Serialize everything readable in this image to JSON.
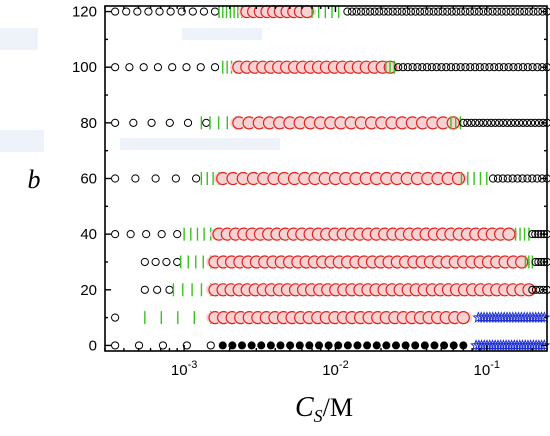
{
  "chart_data": {
    "type": "scatter",
    "title": "",
    "xlabel": "C_S/M",
    "ylabel": "b",
    "x_scale": "log",
    "xlim": [
      0.0003,
      0.25
    ],
    "ylim": [
      -2,
      122
    ],
    "grid": false,
    "legend": "none",
    "colors": {
      "open_circle": "#000000",
      "large_circle": "#e0201c",
      "bar": "#36c21f",
      "filled_circle": "#000000",
      "star": "#1d2fd6",
      "halo": "#f6d2d2"
    },
    "x_ticks": [
      {
        "value": 0.001,
        "base": "10",
        "exp": "-3"
      },
      {
        "value": 0.01,
        "base": "10",
        "exp": "-2"
      },
      {
        "value": 0.1,
        "base": "10",
        "exp": "-1"
      }
    ],
    "y_ticks": [
      {
        "value": 0,
        "label": "0"
      },
      {
        "value": 20,
        "label": "20"
      },
      {
        "value": 40,
        "label": "40"
      },
      {
        "value": 60,
        "label": "60"
      },
      {
        "value": 80,
        "label": "80"
      },
      {
        "value": 100,
        "label": "100"
      },
      {
        "value": 120,
        "label": "120"
      }
    ],
    "rows": [
      {
        "b": 120,
        "segments": [
          {
            "marker": "open_circle",
            "from": 0.00035,
            "to": 0.0016,
            "n": 10
          },
          {
            "marker": "bar",
            "from": 0.0017,
            "to": 0.0024,
            "n": 7
          },
          {
            "marker": "large_circle",
            "from": 0.0026,
            "to": 0.0065,
            "n": 10
          },
          {
            "marker": "bar",
            "from": 0.007,
            "to": 0.0105,
            "n": 5
          },
          {
            "marker": "open_circle",
            "from": 0.012,
            "to": 0.25,
            "n": 45
          }
        ]
      },
      {
        "b": 100,
        "segments": [
          {
            "marker": "open_circle",
            "from": 0.00035,
            "to": 0.0016,
            "n": 8
          },
          {
            "marker": "bar",
            "from": 0.0018,
            "to": 0.0022,
            "n": 4
          },
          {
            "marker": "large_circle",
            "from": 0.0023,
            "to": 0.023,
            "n": 20
          },
          {
            "marker": "bar",
            "from": 0.0215,
            "to": 0.0245,
            "n": 3
          },
          {
            "marker": "open_circle",
            "from": 0.026,
            "to": 0.25,
            "n": 32
          }
        ]
      },
      {
        "b": 80,
        "segments": [
          {
            "marker": "open_circle",
            "from": 0.00035,
            "to": 0.0014,
            "n": 6
          },
          {
            "marker": "bar",
            "from": 0.0013,
            "to": 0.0022,
            "n": 5
          },
          {
            "marker": "large_circle",
            "from": 0.0023,
            "to": 0.06,
            "n": 22
          },
          {
            "marker": "bar",
            "from": 0.058,
            "to": 0.067,
            "n": 3
          },
          {
            "marker": "open_circle",
            "from": 0.07,
            "to": 0.25,
            "n": 22
          }
        ]
      },
      {
        "b": 60,
        "segments": [
          {
            "marker": "open_circle",
            "from": 0.00035,
            "to": 0.0012,
            "n": 5
          },
          {
            "marker": "bar",
            "from": 0.0013,
            "to": 0.0017,
            "n": 4
          },
          {
            "marker": "large_circle",
            "from": 0.0018,
            "to": 0.065,
            "n": 24
          },
          {
            "marker": "bar",
            "from": 0.068,
            "to": 0.1,
            "n": 5
          },
          {
            "marker": "open_circle",
            "from": 0.11,
            "to": 0.25,
            "n": 12
          }
        ]
      },
      {
        "b": 40,
        "segments": [
          {
            "marker": "open_circle",
            "from": 0.00035,
            "to": 0.0009,
            "n": 5
          },
          {
            "marker": "bar",
            "from": 0.001,
            "to": 0.0015,
            "n": 5
          },
          {
            "marker": "large_circle",
            "from": 0.0017,
            "to": 0.14,
            "n": 36
          },
          {
            "marker": "bar",
            "from": 0.155,
            "to": 0.19,
            "n": 4
          },
          {
            "marker": "open_circle",
            "from": 0.2,
            "to": 0.25,
            "n": 6
          }
        ]
      },
      {
        "b": 30,
        "segments": [
          {
            "marker": "open_circle",
            "from": 0.00055,
            "to": 0.0009,
            "n": 4
          },
          {
            "marker": "bar",
            "from": 0.00095,
            "to": 0.0015,
            "n": 5
          },
          {
            "marker": "large_circle",
            "from": 0.0016,
            "to": 0.17,
            "n": 38
          },
          {
            "marker": "bar",
            "from": 0.18,
            "to": 0.2,
            "n": 3
          },
          {
            "marker": "open_circle",
            "from": 0.21,
            "to": 0.25,
            "n": 5
          }
        ]
      },
      {
        "b": 20,
        "segments": [
          {
            "marker": "open_circle",
            "from": 0.00055,
            "to": 0.0008,
            "n": 3
          },
          {
            "marker": "bar",
            "from": 0.00085,
            "to": 0.0015,
            "n": 5
          },
          {
            "marker": "large_circle",
            "from": 0.0016,
            "to": 0.19,
            "n": 40
          },
          {
            "marker": "open_circle",
            "from": 0.2,
            "to": 0.25,
            "n": 5
          }
        ]
      },
      {
        "b": 10,
        "segments": [
          {
            "marker": "open_circle",
            "from": 0.00035,
            "to": 0.00035,
            "n": 1
          },
          {
            "marker": "bar",
            "from": 0.00055,
            "to": 0.0015,
            "n": 5
          },
          {
            "marker": "large_circle",
            "from": 0.0016,
            "to": 0.07,
            "n": 30
          },
          {
            "marker": "star",
            "from": 0.088,
            "to": 0.24,
            "n": 24
          }
        ]
      },
      {
        "b": 0,
        "segments": [
          {
            "marker": "open_circle",
            "from": 0.00035,
            "to": 0.0015,
            "n": 5
          },
          {
            "marker": "filled_circle",
            "from": 0.0018,
            "to": 0.07,
            "n": 26
          },
          {
            "marker": "star",
            "from": 0.085,
            "to": 0.24,
            "n": 26
          }
        ]
      }
    ]
  }
}
